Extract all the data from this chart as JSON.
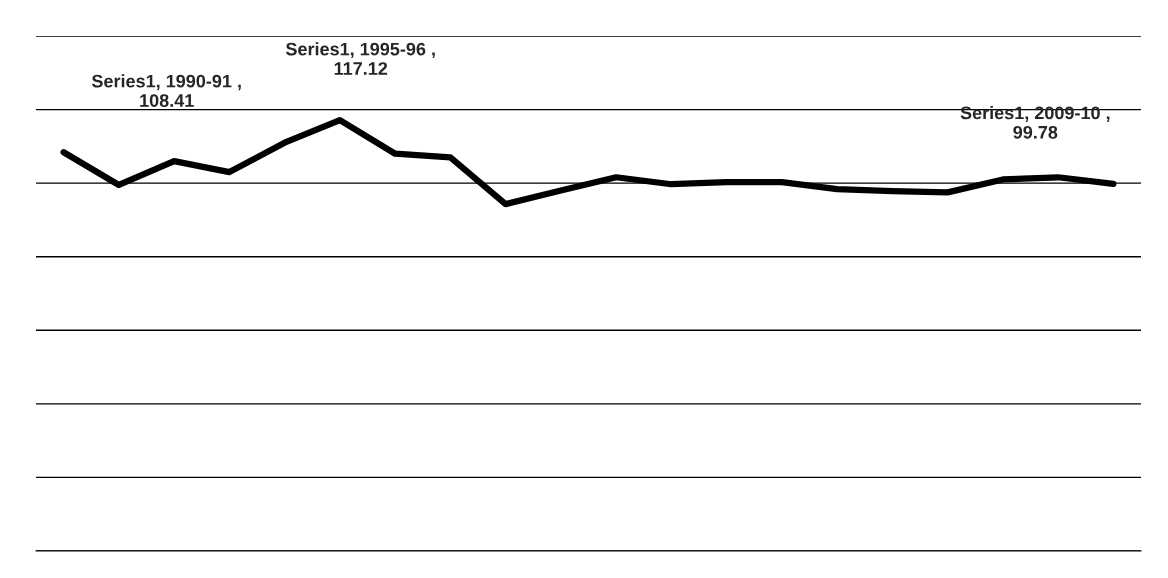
{
  "chart_data": {
    "type": "line",
    "categories": [
      null,
      null,
      null,
      null,
      null,
      null,
      null,
      null,
      null,
      null,
      null,
      null,
      null,
      null,
      null,
      null,
      null,
      null,
      null,
      null
    ],
    "series": [
      {
        "color": "#000000",
        "values": [
          108.41,
          99.5,
          106,
          103,
          111,
          117.12,
          108,
          107,
          94.3,
          98,
          101.6,
          99.7,
          100.3,
          100.3,
          98.4,
          97.8,
          97.5,
          101,
          101.6,
          99.78
        ],
        "value_labels": [
          "Series1, 1990-91 ,\n108.41",
          null,
          null,
          null,
          null,
          "Series1, 1995-96 ,\n117.12",
          null,
          null,
          null,
          null,
          null,
          null,
          null,
          null,
          null,
          null,
          null,
          null,
          null,
          "Series1, 2009-10 ,\n99.78"
        ]
      }
    ],
    "ylim": [
      0,
      140
    ],
    "grid": "y",
    "marker": "none",
    "line_style": "solid"
  }
}
